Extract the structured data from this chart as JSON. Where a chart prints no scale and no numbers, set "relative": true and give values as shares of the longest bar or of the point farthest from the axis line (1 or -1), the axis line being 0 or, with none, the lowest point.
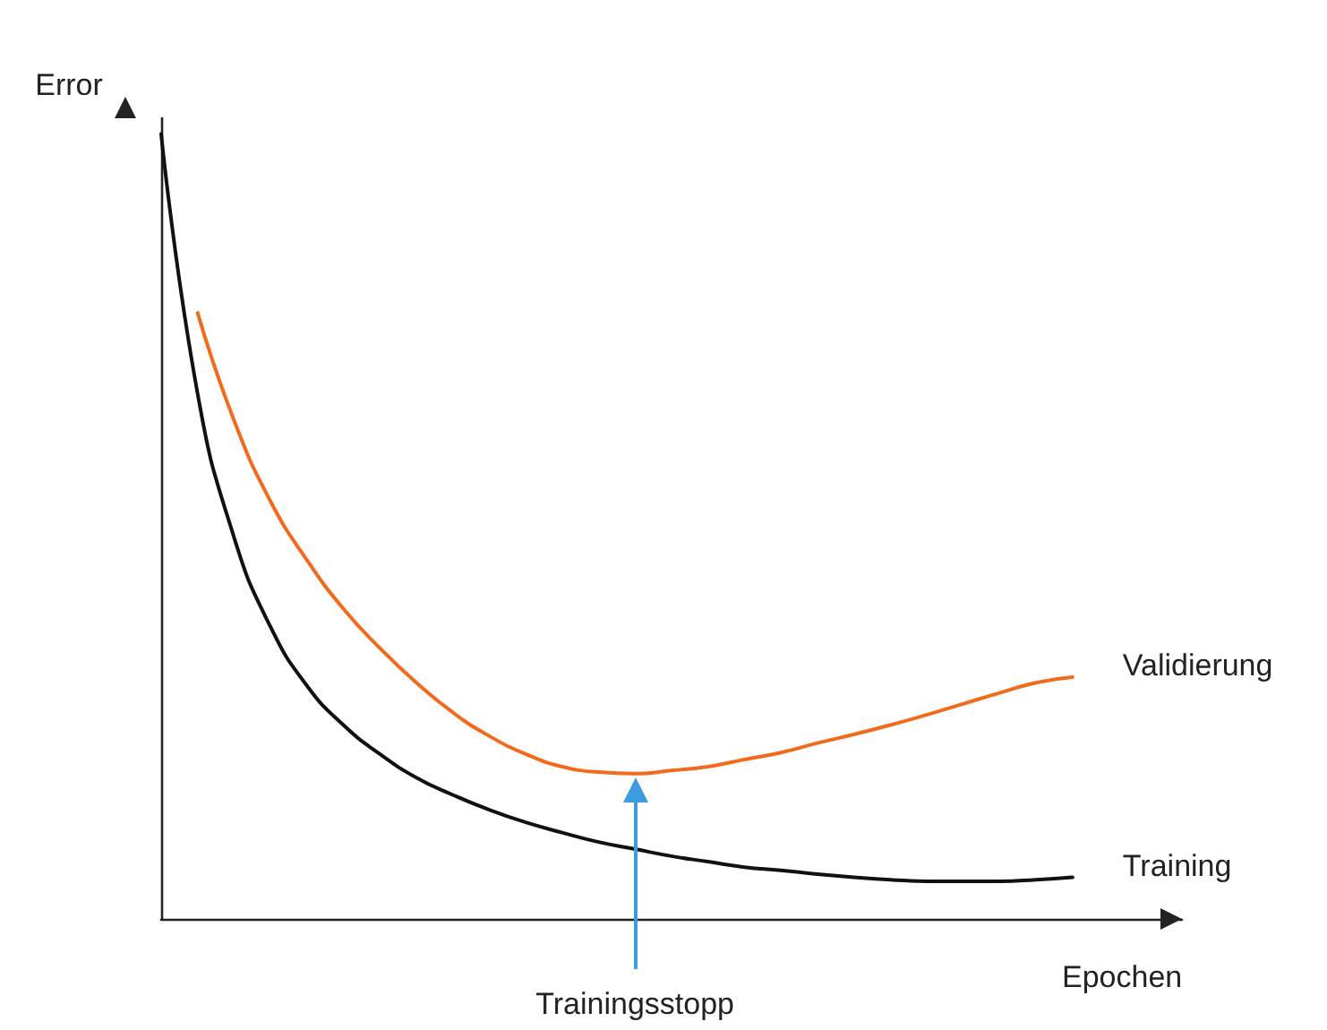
{
  "chart_data": {
    "type": "line",
    "relative": true,
    "xlabel": "Epochen",
    "ylabel": "Error",
    "categories": [
      null,
      null,
      null,
      null,
      null,
      null,
      null,
      null,
      null,
      null,
      null,
      null,
      null,
      null,
      null,
      null,
      null,
      null,
      null,
      null,
      null,
      null,
      null,
      null,
      null,
      null
    ],
    "series": [
      {
        "name": "Validierung",
        "color": "#f26b1d",
        "values": [
          null,
          0.772,
          0.635,
          0.532,
          0.457,
          0.395,
          0.345,
          0.301,
          0.263,
          0.233,
          0.21,
          0.194,
          0.187,
          0.185,
          0.189,
          0.194,
          0.203,
          0.212,
          0.224,
          0.235,
          0.247,
          0.26,
          0.274,
          0.288,
          0.301,
          0.308
        ]
      },
      {
        "name": "Training",
        "color": "#111111",
        "values": [
          1.0,
          0.669,
          0.486,
          0.372,
          0.297,
          0.247,
          0.21,
          0.18,
          0.158,
          0.139,
          0.123,
          0.11,
          0.098,
          0.089,
          0.08,
          0.073,
          0.066,
          0.062,
          0.057,
          0.053,
          0.05,
          0.048,
          0.048,
          0.048,
          0.05,
          0.053
        ]
      }
    ],
    "annotations": [
      "Trainingsstopp"
    ],
    "grid": false,
    "legend": false,
    "marker": "none",
    "line_style": "solid"
  }
}
